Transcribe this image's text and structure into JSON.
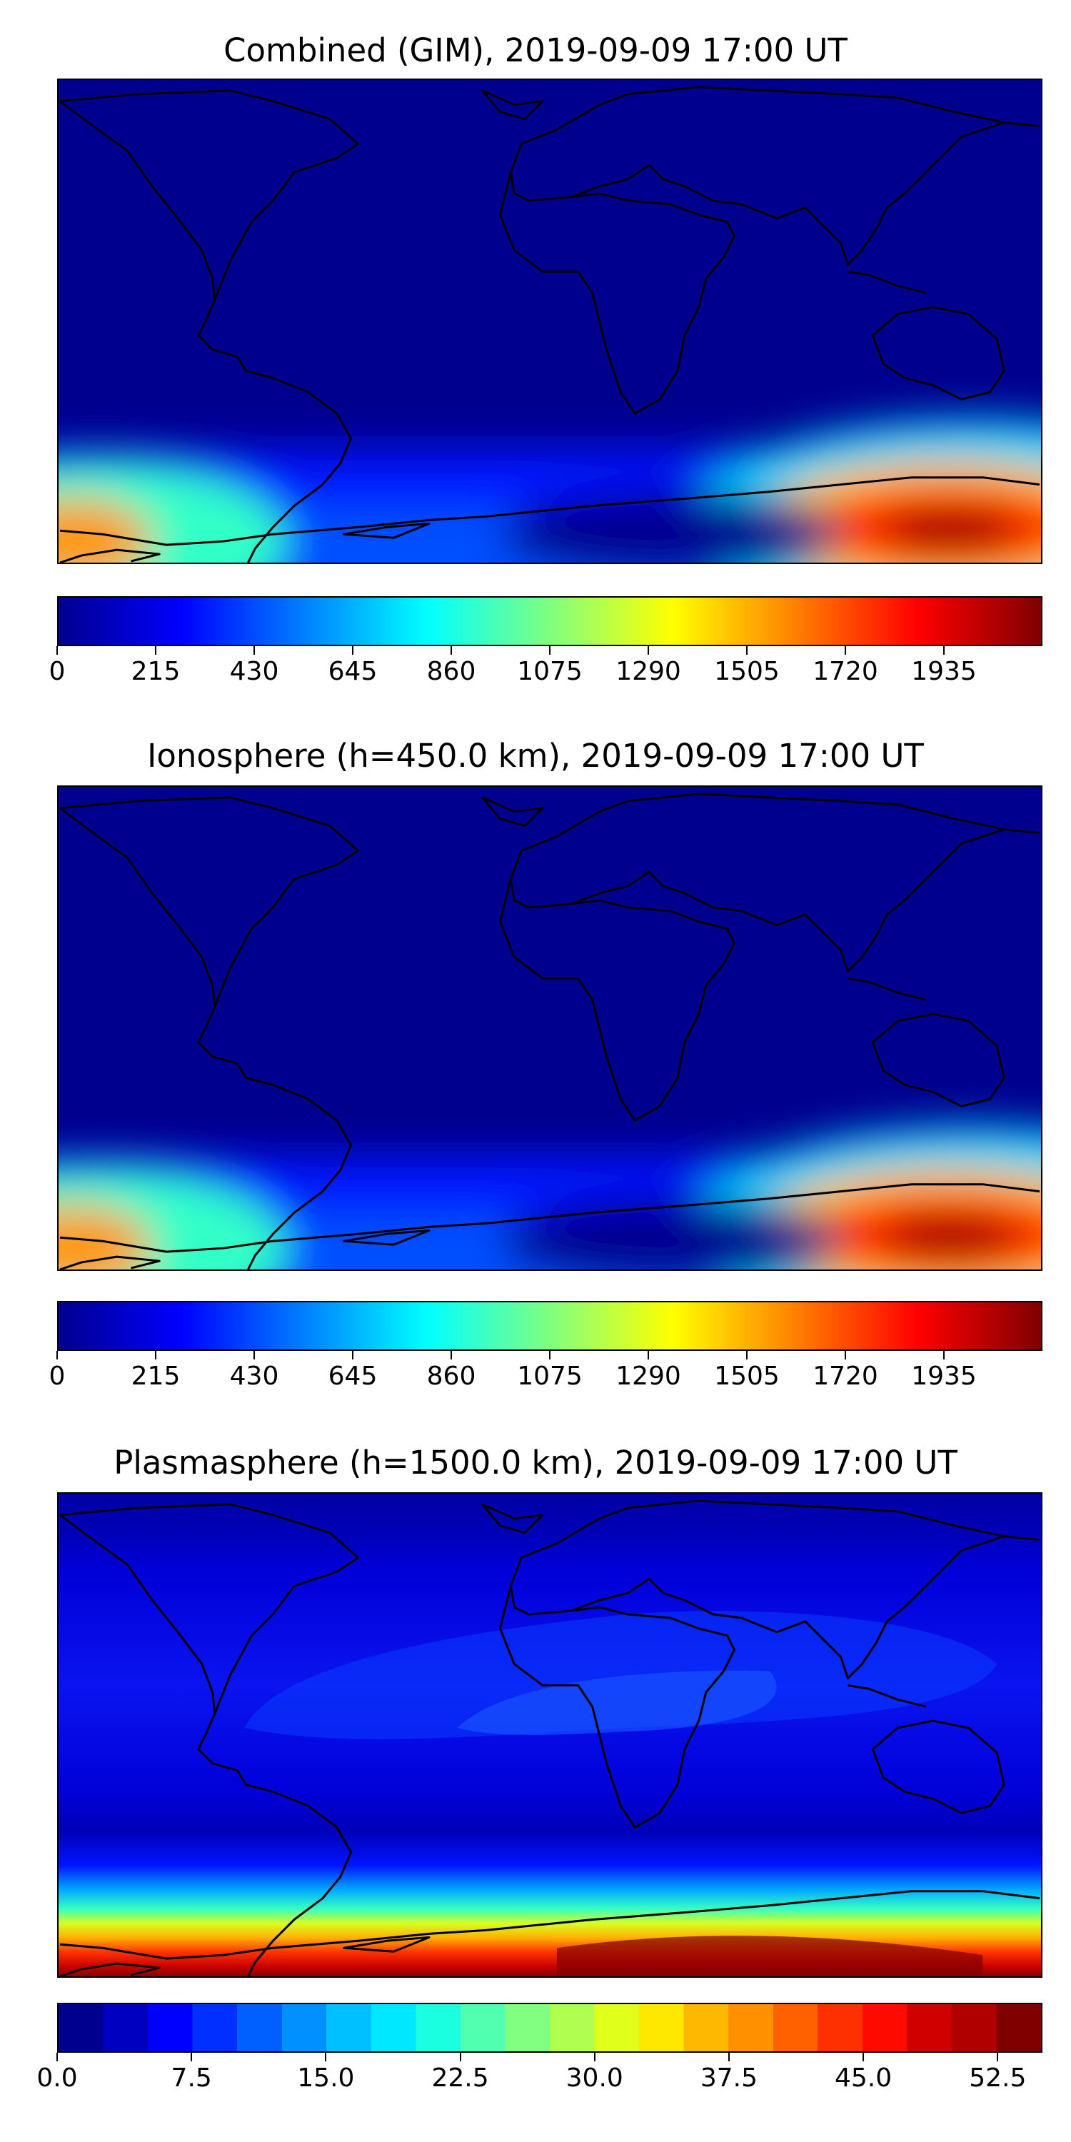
{
  "panels": [
    {
      "title": "Combined (GIM), 2019-09-09 17:00 UT",
      "colorbar": {
        "colormap": "jet",
        "vmin": 0,
        "vmax": 2150,
        "ticks": [
          "0",
          "215",
          "430",
          "645",
          "860",
          "1075",
          "1290",
          "1505",
          "1720",
          "1935"
        ]
      }
    },
    {
      "title": "Ionosphere  (h=450.0 km), 2019-09-09 17:00 UT",
      "colorbar": {
        "colormap": "jet",
        "vmin": 0,
        "vmax": 2150,
        "ticks": [
          "0",
          "215",
          "430",
          "645",
          "860",
          "1075",
          "1290",
          "1505",
          "1720",
          "1935"
        ]
      }
    },
    {
      "title": "Plasmasphere (h=1500.0 km), 2019-09-09 17:00 UT",
      "colorbar": {
        "colormap": "jet",
        "discrete_levels": 22,
        "vmin": 0.0,
        "vmax": 55.0,
        "ticks": [
          "0.0",
          "7.5",
          "15.0",
          "22.5",
          "30.0",
          "37.5",
          "45.0",
          "52.5"
        ]
      }
    }
  ]
}
